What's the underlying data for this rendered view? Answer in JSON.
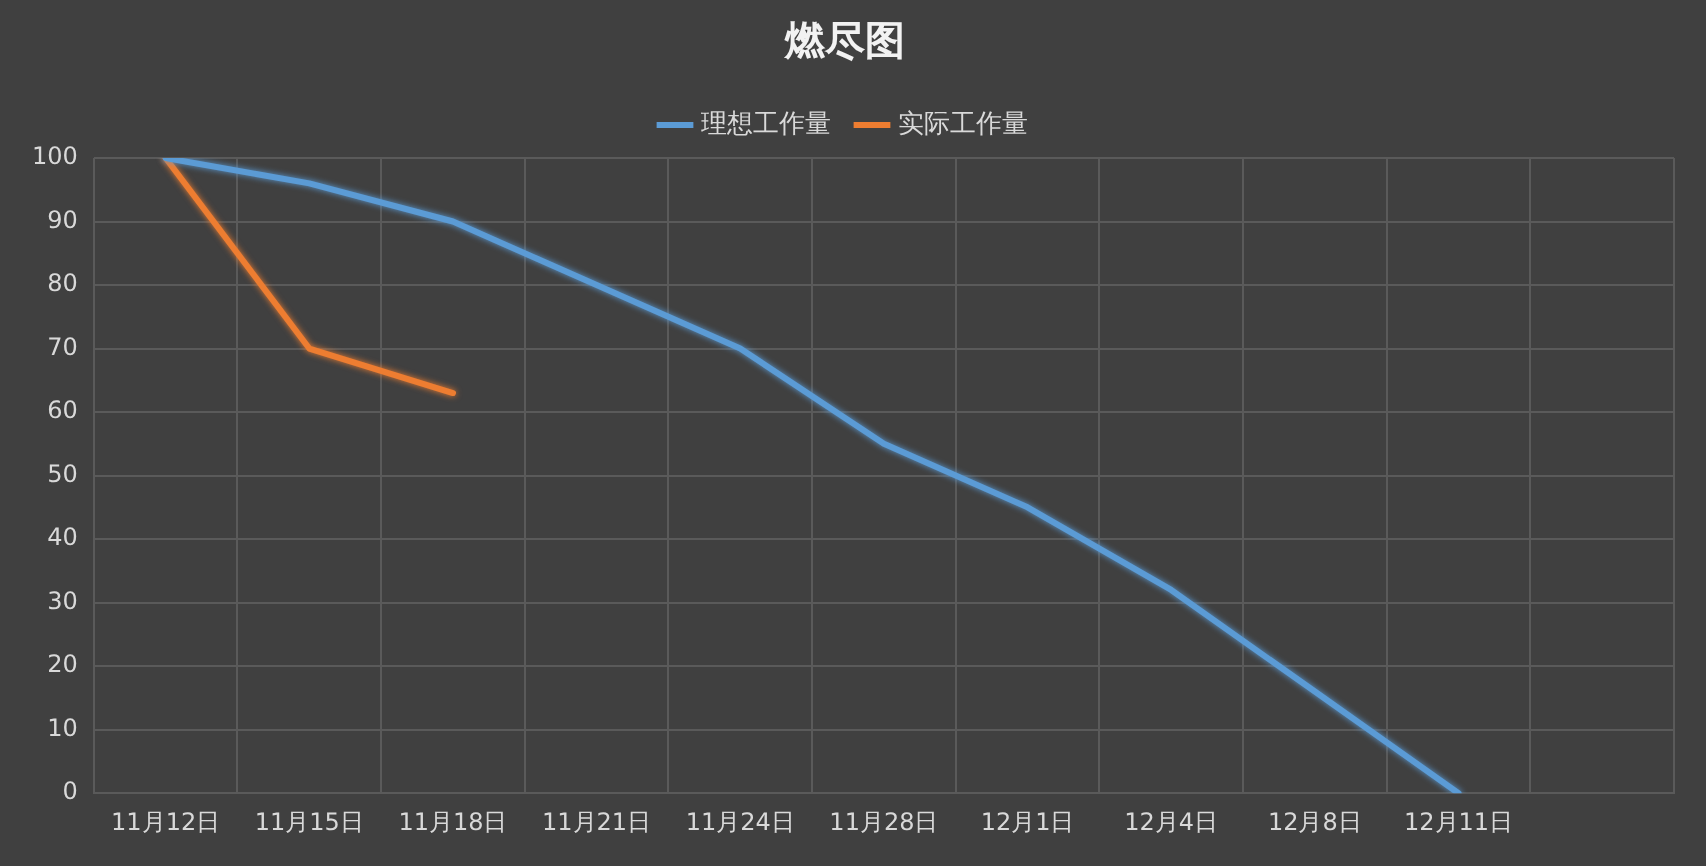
{
  "chart_data": {
    "type": "line",
    "title": "燃尽图",
    "categories": [
      "11月12日",
      "11月15日",
      "11月18日",
      "11月21日",
      "11月24日",
      "11月28日",
      "12月1日",
      "12月4日",
      "12月8日",
      "12月11日",
      null
    ],
    "series": [
      {
        "name": "理想工作量",
        "color": "#5b9bd5",
        "values": [
          100,
          96,
          90,
          80,
          70,
          55,
          45,
          32,
          16,
          0,
          null
        ]
      },
      {
        "name": "实际工作量",
        "color": "#ed7d31",
        "values": [
          100,
          70,
          63,
          null,
          null,
          null,
          null,
          null,
          null,
          null,
          null
        ]
      }
    ],
    "ylim": [
      0,
      100
    ],
    "yticks": [
      0,
      10,
      20,
      30,
      40,
      50,
      60,
      70,
      80,
      90,
      100
    ],
    "grid": true,
    "legend": "top",
    "marker": "none",
    "line_style": "solid"
  }
}
